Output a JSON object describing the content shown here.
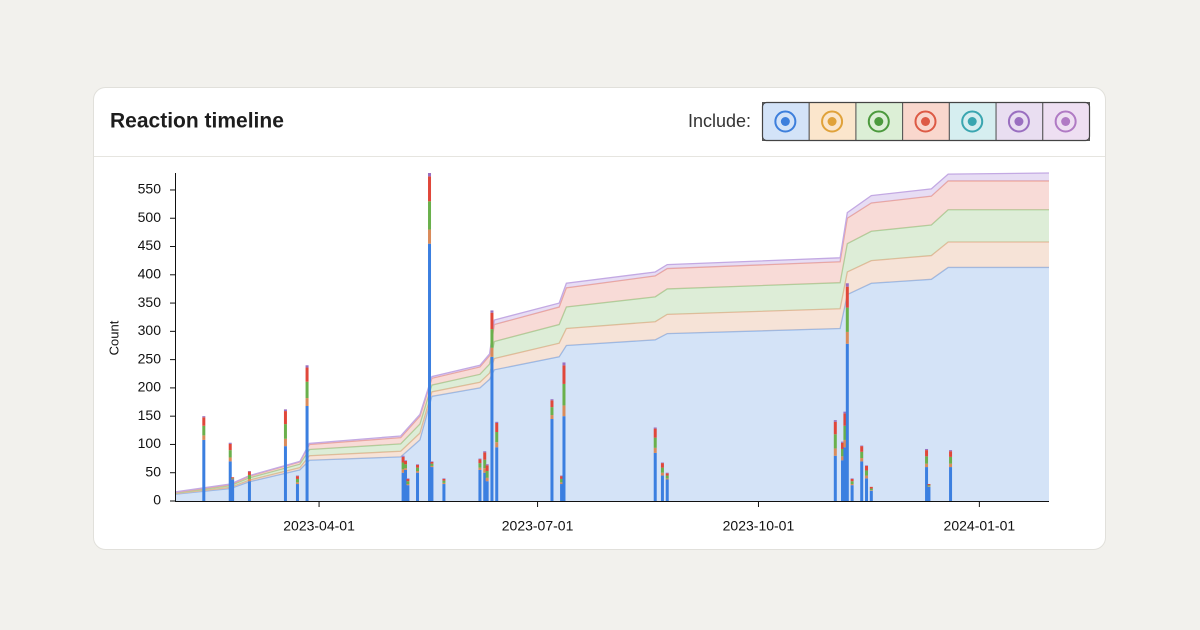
{
  "header": {
    "title": "Reaction timeline",
    "include_label": "Include:",
    "filters": [
      {
        "color": "#d3e3f8",
        "icon_color": "#3d7fdc"
      },
      {
        "color": "#fbe6cc",
        "icon_color": "#e0a23a"
      },
      {
        "color": "#dcefd6",
        "icon_color": "#4c9a3e"
      },
      {
        "color": "#f9d7cd",
        "icon_color": "#dd5a45"
      },
      {
        "color": "#d6eef0",
        "icon_color": "#3aa6b0"
      },
      {
        "color": "#e9def1",
        "icon_color": "#9a6fc0"
      },
      {
        "color": "#eedff2",
        "icon_color": "#b07ac4"
      }
    ]
  },
  "chart_data": [
    {
      "type": "area",
      "y_label": "Count",
      "xlim": [
        "2023-01-31",
        "2024-01-30"
      ],
      "xticks": [
        "2023-04-01",
        "2023-07-01",
        "2023-10-01",
        "2024-01-01"
      ],
      "ylim": [
        0,
        580
      ],
      "yticks": [
        0,
        50,
        100,
        150,
        200,
        250,
        300,
        350,
        400,
        450,
        500,
        550
      ],
      "x": [
        "2023-01-31",
        "2023-02-23",
        "2023-03-03",
        "2023-03-24",
        "2023-03-28",
        "2023-05-05",
        "2023-05-13",
        "2023-05-18",
        "2023-06-07",
        "2023-06-11",
        "2023-06-13",
        "2023-07-10",
        "2023-07-13",
        "2023-08-19",
        "2023-08-24",
        "2023-11-04",
        "2023-11-07",
        "2023-11-17",
        "2023-12-12",
        "2023-12-19",
        "2024-01-30"
      ],
      "series": [
        {
          "color": "#93b8ec",
          "values": [
            12,
            22,
            34,
            55,
            72,
            78,
            108,
            185,
            200,
            215,
            232,
            255,
            275,
            285,
            296,
            305,
            365,
            385,
            392,
            413,
            413
          ]
        },
        {
          "color": "#e9b89a",
          "values": [
            1,
            2,
            3,
            4,
            8,
            10,
            12,
            8,
            10,
            11,
            20,
            24,
            30,
            32,
            34,
            35,
            40,
            40,
            42,
            45,
            45
          ]
        },
        {
          "color": "#a9d39b",
          "values": [
            1,
            3,
            4,
            6,
            11,
            13,
            16,
            12,
            14,
            16,
            30,
            33,
            38,
            44,
            45,
            46,
            50,
            52,
            54,
            57,
            57
          ]
        },
        {
          "color": "#eea69a",
          "values": [
            1,
            2,
            3,
            4,
            9,
            11,
            14,
            12,
            13,
            15,
            30,
            31,
            34,
            37,
            36,
            37,
            45,
            50,
            51,
            51,
            51
          ]
        },
        {
          "color": "#c3a9e3",
          "values": [
            1,
            1,
            1,
            1,
            2,
            3,
            3,
            3,
            3,
            3,
            8,
            7,
            8,
            7,
            7,
            7,
            10,
            13,
            13,
            12,
            14
          ]
        }
      ]
    },
    {
      "type": "bar",
      "x": [
        "2023-02-12",
        "2023-02-23",
        "2023-02-24",
        "2023-03-03",
        "2023-03-18",
        "2023-03-23",
        "2023-03-27",
        "2023-05-06",
        "2023-05-07",
        "2023-05-08",
        "2023-05-12",
        "2023-05-17",
        "2023-05-18",
        "2023-05-23",
        "2023-06-07",
        "2023-06-09",
        "2023-06-10",
        "2023-06-12",
        "2023-06-14",
        "2023-07-07",
        "2023-07-11",
        "2023-07-12",
        "2023-08-19",
        "2023-08-22",
        "2023-08-24",
        "2023-11-02",
        "2023-11-05",
        "2023-11-06",
        "2023-11-07",
        "2023-11-09",
        "2023-11-13",
        "2023-11-15",
        "2023-11-17",
        "2023-12-10",
        "2023-12-11",
        "2023-12-20"
      ],
      "series": [
        {
          "color": "#3b7fe0",
          "values": [
            108,
            70,
            38,
            35,
            97,
            30,
            168,
            50,
            55,
            28,
            50,
            455,
            60,
            30,
            55,
            50,
            35,
            255,
            95,
            145,
            30,
            150,
            85,
            45,
            38,
            80,
            72,
            95,
            278,
            28,
            70,
            40,
            18,
            60,
            25,
            60
          ]
        },
        {
          "color": "#d98b5a",
          "values": [
            8,
            7,
            1,
            4,
            13,
            3,
            14,
            6,
            3,
            2,
            3,
            25,
            2,
            2,
            4,
            8,
            6,
            16,
            9,
            7,
            3,
            19,
            9,
            5,
            2,
            13,
            7,
            13,
            21,
            2,
            6,
            5,
            1,
            6,
            1,
            6
          ]
        },
        {
          "color": "#6ab04c",
          "values": [
            17,
            13,
            1,
            7,
            26,
            6,
            29,
            12,
            7,
            5,
            6,
            50,
            4,
            4,
            8,
            15,
            12,
            33,
            18,
            14,
            6,
            38,
            18,
            9,
            5,
            25,
            13,
            25,
            43,
            5,
            11,
            9,
            3,
            13,
            2,
            12
          ]
        },
        {
          "color": "#e0473a",
          "values": [
            15,
            11,
            2,
            6,
            23,
            5,
            25,
            10,
            6,
            4,
            5,
            44,
            3,
            3,
            7,
            13,
            10,
            29,
            16,
            12,
            5,
            33,
            16,
            8,
            4,
            22,
            11,
            22,
            37,
            4,
            10,
            8,
            3,
            11,
            2,
            10
          ]
        },
        {
          "color": "#9a6fc0",
          "values": [
            2,
            2,
            0,
            1,
            3,
            1,
            4,
            2,
            1,
            1,
            1,
            6,
            1,
            1,
            1,
            2,
            2,
            4,
            2,
            2,
            1,
            5,
            2,
            1,
            1,
            3,
            2,
            3,
            6,
            1,
            1,
            1,
            0,
            2,
            0,
            2
          ]
        }
      ]
    }
  ]
}
